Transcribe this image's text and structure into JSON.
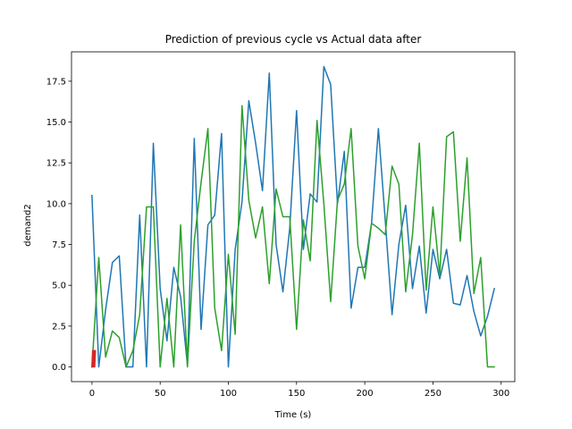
{
  "chart_data": {
    "type": "line",
    "title": "Prediction of previous cycle vs Actual data after",
    "xlabel": "Time (s)",
    "ylabel": "demand2",
    "xlim": [
      -15,
      310
    ],
    "ylim": [
      -0.9,
      19.3
    ],
    "xticks": [
      0,
      50,
      100,
      150,
      200,
      250,
      300
    ],
    "xtick_labels": [
      "0",
      "50",
      "100",
      "150",
      "200",
      "250",
      "300"
    ],
    "yticks": [
      0,
      2.5,
      5,
      7.5,
      10,
      12.5,
      15,
      17.5
    ],
    "ytick_labels": [
      "0.0",
      "2.5",
      "5.0",
      "7.5",
      "10.0",
      "12.5",
      "15.0",
      "17.5"
    ],
    "grid": false,
    "legend": "none",
    "series": [
      {
        "color": "#1f77b4",
        "x": [
          0,
          5,
          10,
          15,
          20,
          25,
          30,
          35,
          40,
          45,
          50,
          55,
          60,
          65,
          70,
          75,
          80,
          85,
          90,
          95,
          100,
          105,
          110,
          115,
          120,
          125,
          130,
          135,
          140,
          145,
          150,
          155,
          160,
          165,
          170,
          175,
          180,
          185,
          190,
          195,
          200,
          205,
          210,
          215,
          220,
          225,
          230,
          235,
          240,
          245,
          250,
          255,
          260,
          265,
          270,
          275,
          280,
          285,
          290,
          295
        ],
        "y": [
          10.5,
          0,
          3.5,
          6.4,
          6.8,
          0,
          0,
          9.3,
          0,
          13.7,
          4.8,
          1.6,
          6.1,
          4.3,
          0.1,
          14,
          2.3,
          8.7,
          9.3,
          14.3,
          0,
          7.2,
          10.1,
          16.3,
          13.7,
          10.8,
          18,
          7.5,
          4.6,
          8.5,
          15.7,
          7.2,
          10.6,
          10.1,
          18.4,
          17.3,
          10,
          13.2,
          3.6,
          6.1,
          6.1,
          8.8,
          14.6,
          9,
          3.2,
          7.5,
          9.9,
          4.8,
          7.4,
          3.3,
          7.2,
          5.4,
          7.2,
          3.9,
          3.8,
          5.6,
          3.4,
          1.9,
          3.1,
          4.8
        ]
      },
      {
        "color": "#2ca02c",
        "x": [
          0,
          5,
          10,
          15,
          20,
          25,
          30,
          35,
          40,
          45,
          50,
          55,
          60,
          65,
          70,
          75,
          80,
          85,
          90,
          95,
          100,
          105,
          110,
          115,
          120,
          125,
          130,
          135,
          140,
          145,
          150,
          155,
          160,
          165,
          170,
          175,
          180,
          185,
          190,
          195,
          200,
          205,
          210,
          215,
          220,
          225,
          230,
          235,
          240,
          245,
          250,
          255,
          260,
          265,
          270,
          275,
          280,
          285,
          290,
          295
        ],
        "y": [
          0,
          6.7,
          0.6,
          2.2,
          1.8,
          0,
          1,
          3.2,
          9.8,
          9.8,
          0,
          4.2,
          0,
          8.7,
          0,
          7.7,
          11.3,
          14.6,
          3.6,
          1,
          6.9,
          2,
          16,
          10.2,
          7.9,
          9.8,
          5.1,
          10.9,
          9.2,
          9.2,
          2.3,
          9,
          6.5,
          15.1,
          10,
          4,
          10.2,
          11.2,
          14.6,
          7.4,
          5.4,
          8.8,
          8.5,
          8.1,
          12.3,
          11.2,
          4.6,
          8.1,
          13.7,
          4.7,
          9.8,
          5.6,
          14.1,
          14.4,
          7.7,
          12.8,
          4.5,
          6.7,
          0,
          0
        ]
      },
      {
        "color": "#d62728",
        "x": [
          0,
          0.5,
          1,
          1.5,
          2,
          2.5
        ],
        "y": [
          0,
          1,
          0,
          1,
          0,
          1
        ]
      }
    ]
  }
}
